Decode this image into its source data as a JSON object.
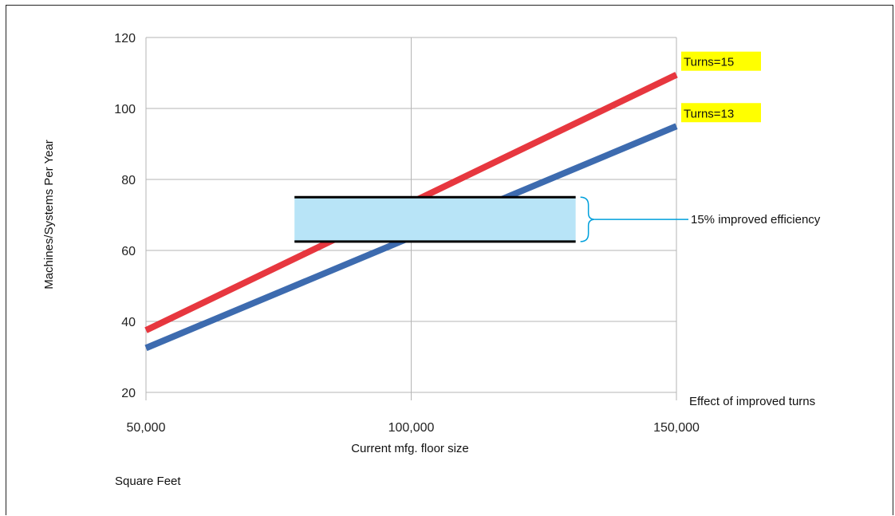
{
  "chart_data": {
    "type": "line",
    "title": "",
    "xlabel": "Current mfg. floor size",
    "ylabel": "Machines/Systems Per Year",
    "x_unit_note": "Square Feet",
    "xlim": [
      50000,
      150000
    ],
    "ylim": [
      20,
      120
    ],
    "x_ticks": [
      50000,
      100000,
      150000
    ],
    "x_tick_labels": [
      "50,000",
      "100,000",
      "150,000"
    ],
    "y_ticks": [
      20,
      40,
      60,
      80,
      100,
      120
    ],
    "y_tick_labels": [
      "20",
      "40",
      "60",
      "80",
      "100",
      "120"
    ],
    "grid": true,
    "series": [
      {
        "name": "Turns=15",
        "color": "#e5262f",
        "x": [
          50000,
          150000
        ],
        "y": [
          37.5,
          109.5
        ]
      },
      {
        "name": "Turns=13",
        "color": "#2c5ea8",
        "x": [
          50000,
          150000
        ],
        "y": [
          32.5,
          95
        ]
      }
    ],
    "band": {
      "x": [
        78000,
        131000
      ],
      "y": [
        62.5,
        75
      ],
      "fill": "#b8e4f7"
    },
    "band_annotation": "15% improved efficiency",
    "footer_annotation": "Effect of improved turns",
    "label_highlight": "#ffff00",
    "band_line_color": "#00a0dc"
  }
}
